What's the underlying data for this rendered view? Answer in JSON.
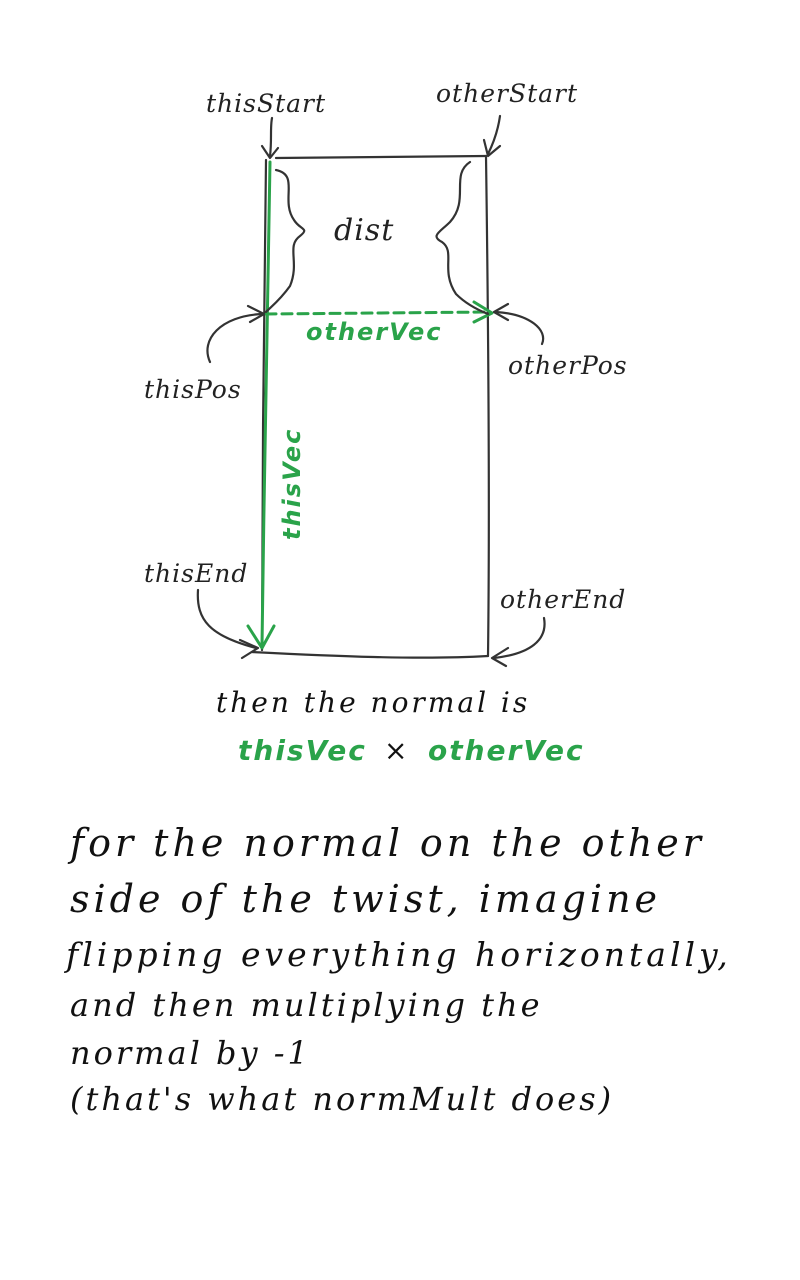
{
  "labels": {
    "this_start": "thisStart",
    "other_start": "otherStart",
    "dist": "dist",
    "this_pos": "thisPos",
    "other_pos": "otherPos",
    "other_vec": "otherVec",
    "this_vec": "thisVec",
    "this_end": "thisEnd",
    "other_end": "otherEnd"
  },
  "caption": {
    "line1": "then the normal is",
    "formula_left": "thisVec",
    "formula_op": "×",
    "formula_right": "otherVec"
  },
  "note": {
    "line1": "for the normal on the other",
    "line2": "side of the twist, imagine",
    "line3": "flipping everything horizontally,",
    "line4": "and then multiplying the",
    "line5": "normal by -1",
    "line6": "(that's what normMult does)"
  },
  "colors": {
    "ink": "#333333",
    "accent_green": "#2aa34a"
  }
}
